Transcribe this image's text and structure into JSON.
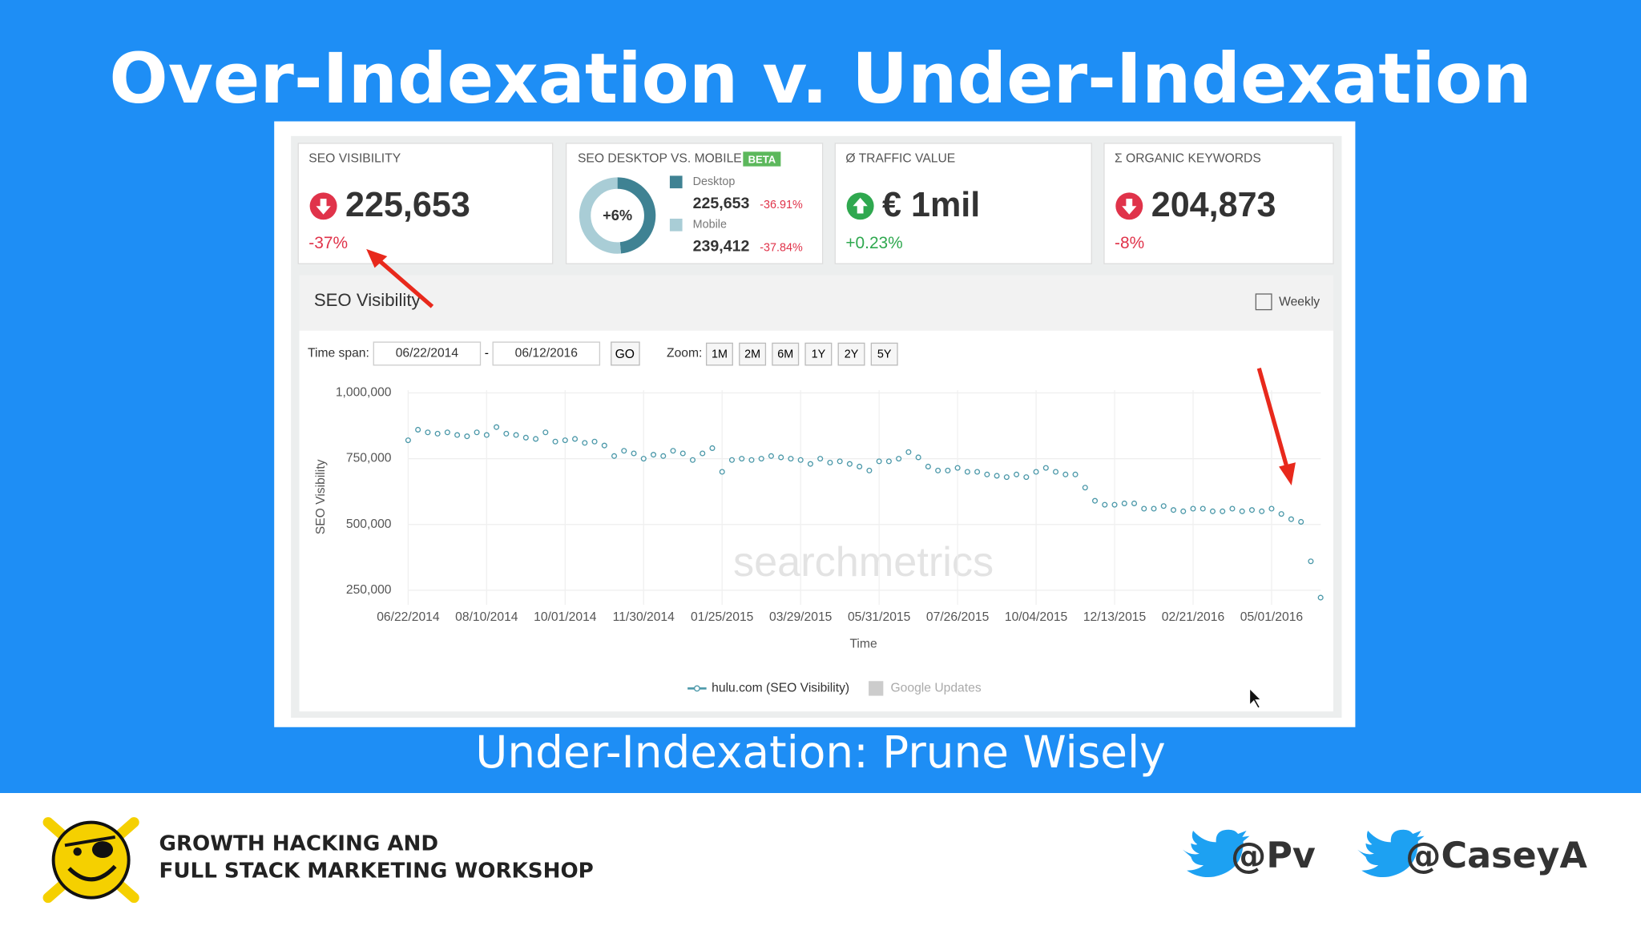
{
  "slide": {
    "title": "Over-Indexation v. Under-Indexation",
    "subtitle": "Under-Indexation: Prune Wisely"
  },
  "cards": [
    {
      "label": "SEO VISIBILITY",
      "value": "225,653",
      "change": "-37%",
      "trend": "down"
    },
    {
      "label": "Ø TRAFFIC VALUE",
      "value": "€ 1mil",
      "change": "+0.23%",
      "trend": "up"
    },
    {
      "label": "Σ ORGANIC KEYWORDS",
      "value": "204,873",
      "change": "-8%",
      "trend": "down"
    }
  ],
  "device_card": {
    "label": "SEO DESKTOP VS. MOBILE",
    "badge": "BETA",
    "center": "+6%",
    "desktop": {
      "name": "Desktop",
      "value": 225653,
      "value_label": "225,653",
      "change": "-36.91%",
      "color": "#3f8293"
    },
    "mobile": {
      "name": "Mobile",
      "value": 239412,
      "value_label": "239,412",
      "change": "-37.84%",
      "color": "#a9cdd6"
    }
  },
  "panel": {
    "title": "SEO Visibility",
    "interval": "Weekly",
    "timespan_label": "Time span:",
    "from": "06/22/2014",
    "separator": "-",
    "to": "06/12/2016",
    "go": "GO",
    "zoom_label": "Zoom:",
    "zoom": [
      "1M",
      "2M",
      "6M",
      "1Y",
      "2Y",
      "5Y"
    ],
    "watermark": "searchmetrics",
    "legend_extra": "Google Updates"
  },
  "chart_data": {
    "type": "line",
    "x_label": "Time",
    "y_label": "SEO Visibility",
    "categories": [
      "06/22/2014",
      null,
      null,
      null,
      null,
      null,
      null,
      null,
      "08/10/2014",
      null,
      null,
      null,
      null,
      null,
      null,
      null,
      "10/01/2014",
      null,
      null,
      null,
      null,
      null,
      null,
      null,
      "11/30/2014",
      null,
      null,
      null,
      null,
      null,
      null,
      null,
      "01/25/2015",
      null,
      null,
      null,
      null,
      null,
      null,
      null,
      "03/29/2015",
      null,
      null,
      null,
      null,
      null,
      null,
      null,
      "05/31/2015",
      null,
      null,
      null,
      null,
      null,
      null,
      null,
      "07/26/2015",
      null,
      null,
      null,
      null,
      null,
      null,
      null,
      "10/04/2015",
      null,
      null,
      null,
      null,
      null,
      null,
      null,
      "12/13/2015",
      null,
      null,
      null,
      null,
      null,
      null,
      null,
      "02/21/2016",
      null,
      null,
      null,
      null,
      null,
      null,
      null,
      "05/01/2016",
      null,
      null,
      null,
      null,
      null
    ],
    "series": [
      {
        "name": "hulu.com (SEO Visibility)",
        "color": "#4b98a9",
        "values": [
          820000,
          860000,
          850000,
          845000,
          850000,
          840000,
          835000,
          850000,
          840000,
          870000,
          845000,
          840000,
          830000,
          825000,
          850000,
          815000,
          820000,
          825000,
          810000,
          815000,
          800000,
          760000,
          780000,
          770000,
          750000,
          765000,
          760000,
          780000,
          770000,
          745000,
          770000,
          790000,
          700000,
          745000,
          750000,
          745000,
          750000,
          760000,
          755000,
          750000,
          745000,
          730000,
          750000,
          735000,
          740000,
          730000,
          720000,
          705000,
          740000,
          740000,
          750000,
          775000,
          755000,
          720000,
          705000,
          705000,
          715000,
          700000,
          700000,
          690000,
          685000,
          680000,
          690000,
          680000,
          700000,
          715000,
          700000,
          690000,
          690000,
          640000,
          590000,
          575000,
          575000,
          580000,
          580000,
          560000,
          560000,
          570000,
          555000,
          550000,
          560000,
          560000,
          550000,
          550000,
          560000,
          550000,
          555000,
          550000,
          560000,
          540000,
          520000,
          510000,
          360000,
          222000
        ]
      }
    ],
    "ylim": [
      195000,
      1010000
    ],
    "yticks": [
      {
        "value": 250000,
        "label": "250,000"
      },
      {
        "value": 500000,
        "label": "500,000"
      },
      {
        "value": 750000,
        "label": "750,000"
      },
      {
        "value": 1000000,
        "label": "1,000,000"
      }
    ],
    "grid": true
  },
  "footer": {
    "line1": "GROWTH HACKING AND",
    "line2": "FULL STACK MARKETING WORKSHOP",
    "handles": [
      "@Pv",
      "@CaseyA"
    ]
  }
}
